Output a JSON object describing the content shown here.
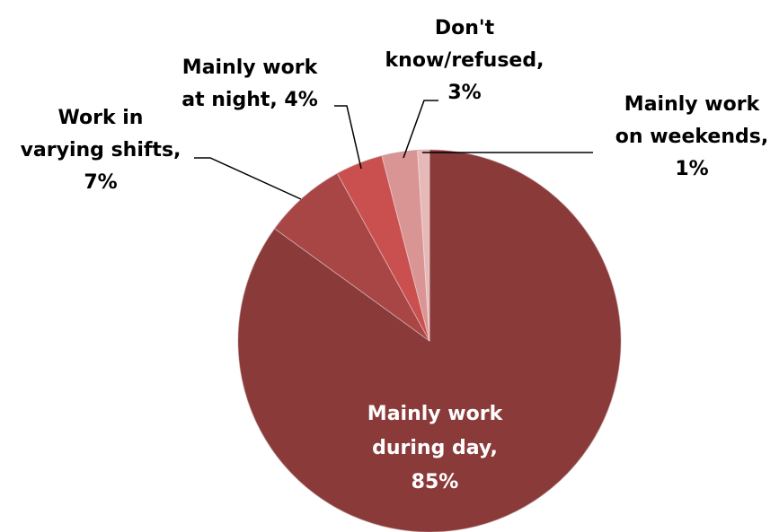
{
  "chart_data": {
    "type": "pie",
    "title": "",
    "start_angle_deg": 0,
    "direction": "clockwise",
    "slices": [
      {
        "name": "Mainly work during day",
        "value": 85,
        "color": "#8B3A3A",
        "label_lines": [
          "Mainly work",
          "during day,",
          "85%"
        ],
        "label_color": "#ffffff",
        "label_position": "inside"
      },
      {
        "name": "Work in varying shifts",
        "value": 7,
        "color": "#A84545",
        "label_lines": [
          "Work in",
          "varying shifts,",
          "7%"
        ],
        "label_color": "#000000",
        "label_position": "outside"
      },
      {
        "name": "Mainly work at night",
        "value": 4,
        "color": "#C9504F",
        "label_lines": [
          "Mainly work",
          "at night, 4%"
        ],
        "label_color": "#000000",
        "label_position": "outside"
      },
      {
        "name": "Don't know/refused",
        "value": 3,
        "color": "#D99594",
        "label_lines": [
          "Don't",
          "know/refused,",
          "3%"
        ],
        "label_color": "#000000",
        "label_position": "outside"
      },
      {
        "name": "Mainly work on weekends",
        "value": 1,
        "color": "#E6B9B8",
        "label_lines": [
          "Mainly work",
          "on weekends,",
          "1%"
        ],
        "label_color": "#000000",
        "label_position": "outside"
      }
    ]
  }
}
